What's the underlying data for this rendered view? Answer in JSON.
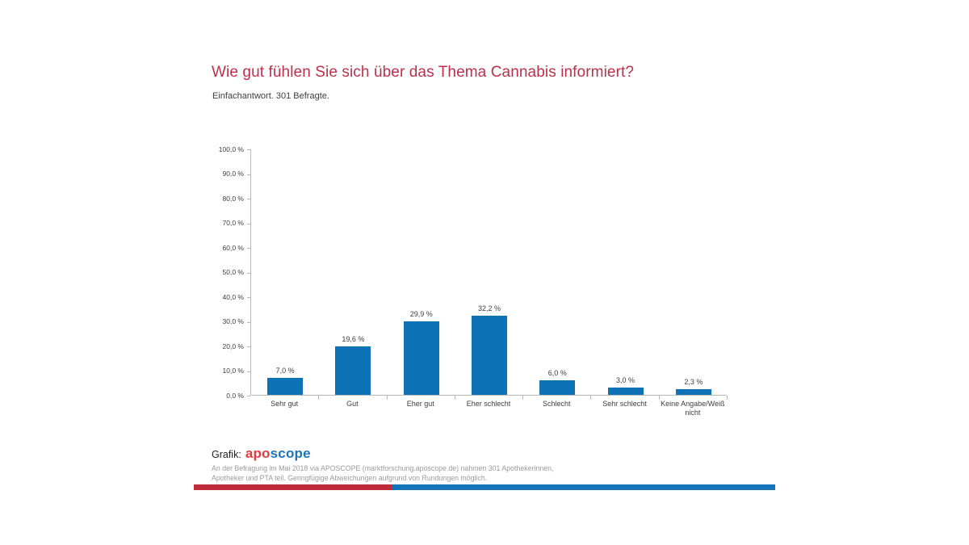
{
  "title": "Wie gut fühlen Sie sich über das Thema Cannabis informiert?",
  "subtitle": "Einfachantwort. 301 Befragte.",
  "chart_data": {
    "type": "bar",
    "categories": [
      "Sehr gut",
      "Gut",
      "Eher gut",
      "Eher schlecht",
      "Schlecht",
      "Sehr schlecht",
      "Keine Angabe/Weiß nicht"
    ],
    "values": [
      7.0,
      19.6,
      29.9,
      32.2,
      6.0,
      3.0,
      2.3
    ],
    "value_labels": [
      "7,0 %",
      "19,6 %",
      "29,9 %",
      "32,2 %",
      "6,0 %",
      "3,0 %",
      "2,3 %"
    ],
    "title": "Wie gut fühlen Sie sich über das Thema Cannabis informiert?",
    "xlabel": "",
    "ylabel": "",
    "ylim": [
      0,
      100
    ],
    "ytick_labels": [
      "100,0 %",
      "90,0 %",
      "80,0 %",
      "70,0 %",
      "60,0 %",
      "50,0 %",
      "40,0 %",
      "30,0 %",
      "20,0 %",
      "10,0 %",
      "0,0 %"
    ],
    "grid": false,
    "legend": null,
    "bar_color": "#0d73b6"
  },
  "footer": {
    "grafik_label": "Grafik:",
    "logo_part1": "apo",
    "logo_part2": "scope",
    "note_line1": "An der Befragung im Mai 2018 via APOSCOPE (marktforschung.aposcope.de) nahmen 301 Apothekerinnen,",
    "note_line2": "Apotheker und PTA teil. Geringfügige Abweichungen aufgrund von Rundungen möglich."
  },
  "colors": {
    "title_red": "#c02e49",
    "bar_blue": "#0d73b6",
    "logo_red": "#e23b3e",
    "logo_blue": "#1b75bc",
    "bottom_bar_red": "#bf2b3b",
    "bottom_bar_blue": "#1274ba",
    "axis_gray": "#b8b8b8",
    "text_dark": "#3d3d3d",
    "note_gray": "#9b9b9b"
  }
}
